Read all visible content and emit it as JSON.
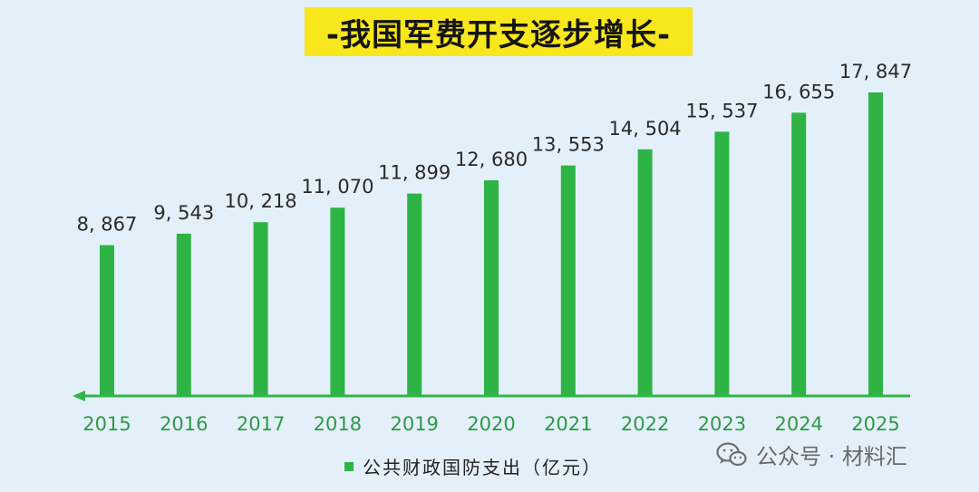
{
  "title": "-我国军费开支逐步增长-",
  "legend_label": "公共财政国防支出（亿元）",
  "watermark": "公众号 · 材料汇",
  "colors": {
    "background": "#e4f0f9",
    "bar": "#2db445",
    "title_highlight": "#f8e71c",
    "axis": "#33b54a",
    "tick_label": "#2e9a47"
  },
  "chart_data": {
    "type": "bar",
    "title": "-我国军费开支逐步增长-",
    "categories": [
      "2015",
      "2016",
      "2017",
      "2018",
      "2019",
      "2020",
      "2021",
      "2022",
      "2023",
      "2024",
      "2025"
    ],
    "series": [
      {
        "name": "公共财政国防支出（亿元）",
        "values": [
          8867,
          9543,
          10218,
          11070,
          11899,
          12680,
          13553,
          14504,
          15537,
          16655,
          17847
        ],
        "value_labels": [
          "8, 867",
          "9, 543",
          "10, 218",
          "11, 070",
          "11, 899",
          "12, 680",
          "13, 553",
          "14, 504",
          "15, 537",
          "16, 655",
          "17, 847"
        ]
      }
    ],
    "xlabel": "",
    "ylabel": "",
    "ylim": [
      0,
      18000
    ],
    "grid": false,
    "legend_position": "bottom"
  }
}
